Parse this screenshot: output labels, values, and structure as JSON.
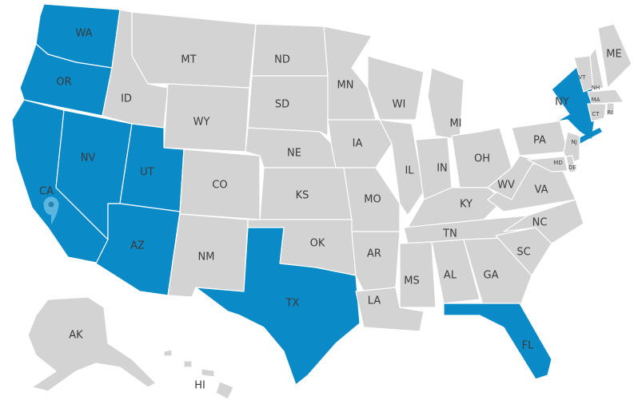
{
  "colors": {
    "highlighted": "#0a8ac6",
    "default": "#d3d3d3",
    "label": "#3b3b3b",
    "pin": "#5bb6df"
  },
  "highlighted_states": [
    "WA",
    "OR",
    "CA",
    "NV",
    "UT",
    "AZ",
    "TX",
    "NY",
    "FL"
  ],
  "marker": {
    "icon": "map-pin-icon",
    "state": "CA"
  },
  "states": {
    "WA": "WA",
    "OR": "OR",
    "CA": "CA",
    "NV": "NV",
    "ID": "ID",
    "MT": "MT",
    "WY": "WY",
    "UT": "UT",
    "AZ": "AZ",
    "CO": "CO",
    "NM": "NM",
    "ND": "ND",
    "SD": "SD",
    "NE": "NE",
    "KS": "KS",
    "OK": "OK",
    "TX": "TX",
    "MN": "MN",
    "IA": "IA",
    "MO": "MO",
    "AR": "AR",
    "LA": "LA",
    "WI": "WI",
    "IL": "IL",
    "MI": "MI",
    "IN": "IN",
    "OH": "OH",
    "KY": "KY",
    "TN": "TN",
    "MS": "MS",
    "AL": "AL",
    "GA": "GA",
    "FL": "FL",
    "SC": "SC",
    "NC": "NC",
    "VA": "VA",
    "WV": "WV",
    "PA": "PA",
    "NY": "NY",
    "NJ": "NJ",
    "MD": "MD",
    "DE": "DE",
    "VT": "VT",
    "NH": "NH",
    "ME": "ME",
    "MA": "MA",
    "CT": "CT",
    "RI": "RI",
    "AK": "AK",
    "HI": "HI"
  }
}
